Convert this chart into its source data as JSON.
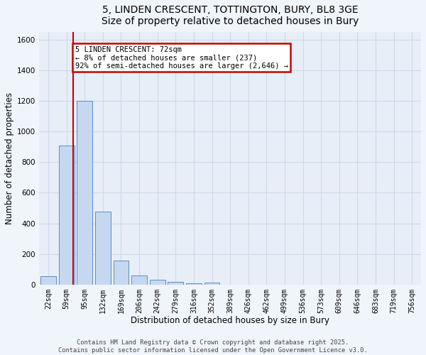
{
  "title_line1": "5, LINDEN CRESCENT, TOTTINGTON, BURY, BL8 3GE",
  "title_line2": "Size of property relative to detached houses in Bury",
  "xlabel": "Distribution of detached houses by size in Bury",
  "ylabel": "Number of detached properties",
  "bar_color": "#c5d8f0",
  "bar_edge_color": "#5b8ec4",
  "background_color": "#e8eef8",
  "grid_color": "#d0d8e8",
  "categories": [
    "22sqm",
    "59sqm",
    "95sqm",
    "132sqm",
    "169sqm",
    "206sqm",
    "242sqm",
    "279sqm",
    "316sqm",
    "352sqm",
    "389sqm",
    "426sqm",
    "462sqm",
    "499sqm",
    "536sqm",
    "573sqm",
    "609sqm",
    "646sqm",
    "683sqm",
    "719sqm",
    "756sqm"
  ],
  "values": [
    55,
    910,
    1200,
    475,
    155,
    60,
    30,
    18,
    10,
    15,
    0,
    0,
    0,
    0,
    0,
    0,
    0,
    0,
    0,
    0,
    0
  ],
  "ylim": [
    0,
    1650
  ],
  "yticks": [
    0,
    200,
    400,
    600,
    800,
    1000,
    1200,
    1400,
    1600
  ],
  "red_line_x": 1.37,
  "annotation_text": "5 LINDEN CRESCENT: 72sqm\n← 8% of detached houses are smaller (237)\n92% of semi-detached houses are larger (2,646) →",
  "annotation_box_color": "#ffffff",
  "annotation_box_edge": "#cc0000",
  "red_line_color": "#cc0000",
  "footer_line1": "Contains HM Land Registry data © Crown copyright and database right 2025.",
  "footer_line2": "Contains public sector information licensed under the Open Government Licence v3.0.",
  "title_fontsize": 10,
  "axis_label_fontsize": 8.5,
  "tick_fontsize": 7,
  "annotation_fontsize": 7.5,
  "fig_bg": "#f0f4fb"
}
